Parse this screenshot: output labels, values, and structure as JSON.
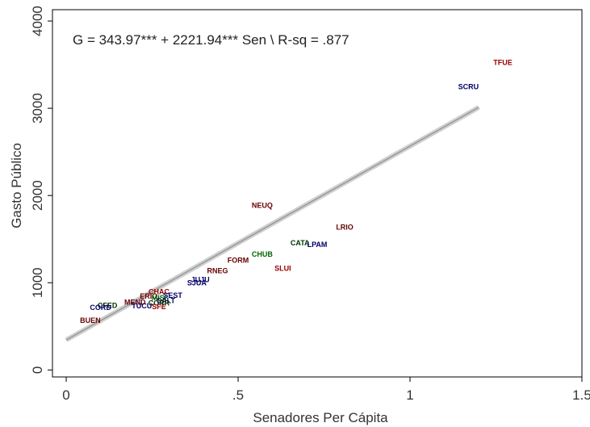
{
  "chart_data": {
    "type": "scatter",
    "title": "G = 343.97*** + 2221.94*** Sen \\   R-sq = .877",
    "xlabel": "Senadores Per Cápita",
    "ylabel": "Gasto Público",
    "xlim": [
      -0.04,
      1.5
    ],
    "ylim": [
      -80,
      4130
    ],
    "xticks": [
      0,
      0.5,
      1,
      1.5
    ],
    "xtick_labels": [
      "0",
      ".5",
      "1",
      "1.5"
    ],
    "yticks": [
      0,
      1000,
      2000,
      3000,
      4000
    ],
    "ytick_labels": [
      "0",
      "1000",
      "2000",
      "3000",
      "4000"
    ],
    "grid": false,
    "fit_line": {
      "intercept": 343.97,
      "slope": 2221.94,
      "x_range": [
        0,
        1.2
      ],
      "color": "#999999"
    },
    "points": [
      {
        "label": "TFUE",
        "x": 1.27,
        "y": 3520,
        "color": "#990000"
      },
      {
        "label": "SCRU",
        "x": 1.17,
        "y": 3240,
        "color": "#000066"
      },
      {
        "label": "NEUQ",
        "x": 0.57,
        "y": 1880,
        "color": "#660000"
      },
      {
        "label": "LRIO",
        "x": 0.81,
        "y": 1630,
        "color": "#660000"
      },
      {
        "label": "CATA",
        "x": 0.68,
        "y": 1450,
        "color": "#003300"
      },
      {
        "label": "LPAM",
        "x": 0.73,
        "y": 1430,
        "color": "#000066"
      },
      {
        "label": "CHUB",
        "x": 0.57,
        "y": 1320,
        "color": "#006600"
      },
      {
        "label": "FORM",
        "x": 0.5,
        "y": 1250,
        "color": "#660000"
      },
      {
        "label": "SLUI",
        "x": 0.63,
        "y": 1160,
        "color": "#990000"
      },
      {
        "label": "RNEG",
        "x": 0.44,
        "y": 1130,
        "color": "#660000"
      },
      {
        "label": "JUJU",
        "x": 0.39,
        "y": 1030,
        "color": "#000066"
      },
      {
        "label": "SJUA",
        "x": 0.38,
        "y": 990,
        "color": "#000066"
      },
      {
        "label": "CHAC",
        "x": 0.27,
        "y": 890,
        "color": "#990000"
      },
      {
        "label": "SEST",
        "x": 0.31,
        "y": 850,
        "color": "#000066"
      },
      {
        "label": "ERIO",
        "x": 0.24,
        "y": 840,
        "color": "#660000"
      },
      {
        "label": "MISI",
        "x": 0.27,
        "y": 820,
        "color": "#006600"
      },
      {
        "label": "SALT",
        "x": 0.29,
        "y": 790,
        "color": "#000066"
      },
      {
        "label": "MEND",
        "x": 0.2,
        "y": 770,
        "color": "#660000"
      },
      {
        "label": "CORR",
        "x": 0.27,
        "y": 760,
        "color": "#003300"
      },
      {
        "label": "TUCU",
        "x": 0.22,
        "y": 730,
        "color": "#000066"
      },
      {
        "label": "CFED",
        "x": 0.12,
        "y": 735,
        "color": "#003300"
      },
      {
        "label": "CORD",
        "x": 0.1,
        "y": 710,
        "color": "#000066"
      },
      {
        "label": "SFE",
        "x": 0.27,
        "y": 720,
        "color": "#990000"
      },
      {
        "label": "BUEN",
        "x": 0.07,
        "y": 560,
        "color": "#660000"
      }
    ]
  }
}
